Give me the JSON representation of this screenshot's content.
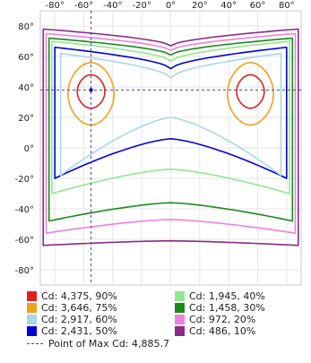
{
  "chart_data": {
    "type": "polar-isocandela-contour",
    "x_ticks": [
      "-80°",
      "-60°",
      "-40°",
      "-20°",
      "0°",
      "20°",
      "40°",
      "60°",
      "80°"
    ],
    "y_ticks": [
      "80°",
      "60°",
      "40°",
      "20°",
      "0°",
      "-20°",
      "-40°",
      "-60°",
      "-80°"
    ],
    "xlim": [
      -90,
      90
    ],
    "ylim": [
      -90,
      90
    ],
    "grid": true,
    "max_point": {
      "x": -55,
      "y": 38
    },
    "max_label": "Point of Max Cd: 4,885.7",
    "legend_placement": "bottom",
    "contours": [
      {
        "label": "Cd: 4,375, 90%",
        "color": "#e02020",
        "x_outer": 64,
        "x_inner": 46,
        "y_top": 48,
        "y_bot": 26,
        "y_mid": 36,
        "shape": "island"
      },
      {
        "label": "Cd: 3,646, 75%",
        "color": "#f0a020",
        "x_outer": 70,
        "x_inner": 40,
        "y_top": 56,
        "y_bot": 15,
        "y_mid": 36,
        "shape": "island"
      },
      {
        "label": "Cd: 2,917, 60%",
        "color": "#a8d8e8",
        "x_outer": 76,
        "y_top": 62,
        "y_bot": -18,
        "y_mid": 20,
        "y_mid_bot": 20,
        "y_center_top": 46,
        "shape": "band"
      },
      {
        "label": "Cd: 2,431, 50%",
        "color": "#0000dd",
        "x_outer": 80,
        "y_top": 66,
        "y_bot": -20,
        "y_mid": 6,
        "y_mid_bot": 6,
        "y_center_top": 52,
        "shape": "band"
      },
      {
        "label": "Cd: 1,945, 40%",
        "color": "#90e890",
        "x_outer": 82,
        "y_top": 70,
        "y_bot": -30,
        "y_mid": -14,
        "y_mid_bot": -14,
        "y_center_top": 57,
        "shape": "band"
      },
      {
        "label": "Cd: 1,458, 30%",
        "color": "#1a8a1a",
        "x_outer": 84,
        "y_top": 72,
        "y_bot": -48,
        "y_mid": -36,
        "y_mid_bot": -36,
        "y_center_top": 61,
        "shape": "band"
      },
      {
        "label": "Cd: 972, 20%",
        "color": "#f080e0",
        "x_outer": 86,
        "y_top": 75,
        "y_bot": -56,
        "y_mid": -47,
        "y_mid_bot": -47,
        "y_center_top": 64,
        "shape": "band"
      },
      {
        "label": "Cd: 486, 10%",
        "color": "#8a2a8a",
        "x_outer": 88,
        "y_top": 78,
        "y_bot": -64,
        "y_mid": -61,
        "y_mid_bot": -61,
        "y_center_top": 67,
        "shape": "band"
      }
    ]
  }
}
